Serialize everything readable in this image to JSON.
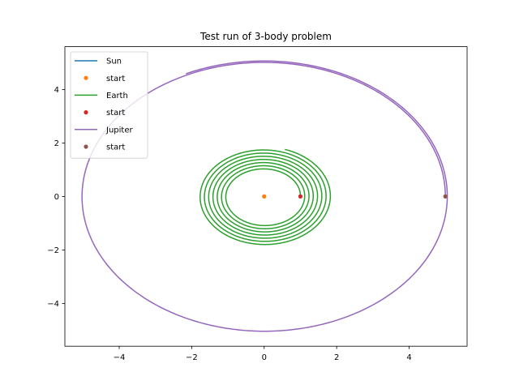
{
  "chart_data": {
    "type": "line",
    "title": "Test run of 3-body problem",
    "xlabel": "",
    "ylabel": "",
    "xlim": [
      -5.5,
      5.6
    ],
    "ylim": [
      -5.6,
      5.6
    ],
    "xticks": [
      -4,
      -2,
      0,
      2,
      4
    ],
    "yticks": [
      -4,
      -2,
      0,
      2,
      4
    ],
    "tick_labels_x": [
      "−4",
      "−2",
      "0",
      "2",
      "4"
    ],
    "tick_labels_y": [
      "−4",
      "−2",
      "0",
      "2",
      "4"
    ],
    "grid": false,
    "legend_position": "upper-left",
    "series": [
      {
        "name": "Sun",
        "kind": "line",
        "color": "#1f77b4",
        "center": [
          0,
          0
        ],
        "radius_start": 0,
        "radius_end": 0,
        "turns": 0
      },
      {
        "name": "start",
        "kind": "point",
        "color": "#ff7f0e",
        "x": [
          0
        ],
        "y": [
          0
        ]
      },
      {
        "name": "Earth",
        "kind": "line",
        "color": "#2ca02c",
        "center": [
          0,
          0
        ],
        "radius_start": 1.0,
        "radius_end": 1.85,
        "turns": 7.2
      },
      {
        "name": "start",
        "kind": "point",
        "color": "#d62728",
        "x": [
          1.0
        ],
        "y": [
          0
        ]
      },
      {
        "name": "Jupiter",
        "kind": "line",
        "color": "#9467bd",
        "center": [
          0,
          0
        ],
        "radius_start": 5.0,
        "radius_end": 5.07,
        "turns": 1.32
      },
      {
        "name": "start",
        "kind": "point",
        "color": "#8c564b",
        "x": [
          5.0
        ],
        "y": [
          0
        ]
      }
    ]
  }
}
